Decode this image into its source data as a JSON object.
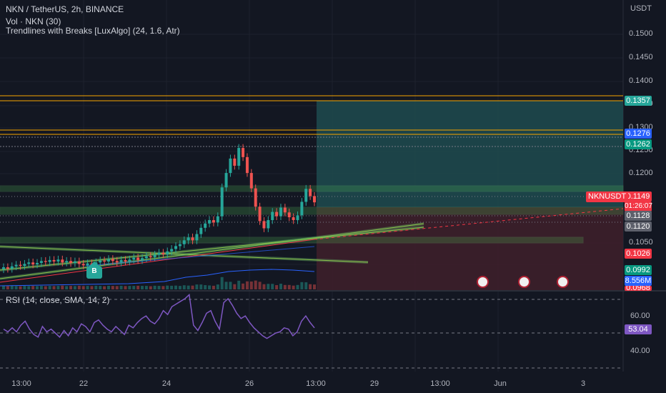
{
  "header": {
    "symbol_line": "NKN / TetherUS, 2h, BINANCE",
    "volume_line": "Vol · NKN (30)",
    "indicator_line": "Trendlines with Breaks [LuxAlgo] (24, 1.6, Atr)",
    "rsi_line": "RSI (14, close, SMA, 14, 2)"
  },
  "price_axis": {
    "currency": "USDT",
    "ticks": [
      "0.1500",
      "0.1450",
      "0.1400",
      "0.1350",
      "0.1300",
      "0.1250",
      "0.1200",
      "0.1050",
      "0.1000",
      "0.0968"
    ]
  },
  "rsi_axis": {
    "ticks": [
      "60.00",
      "40.00"
    ]
  },
  "price_tags": [
    {
      "label": "0.1357",
      "color": "#26a69a"
    },
    {
      "label": "0.1276",
      "color": "#2962ff"
    },
    {
      "label": "0.1262",
      "color": "#089981"
    },
    {
      "label": "0.1149",
      "color": "#f23645"
    },
    {
      "label": "01:26:07",
      "color": "#f23645"
    },
    {
      "label": "0.1128",
      "color": "#5d606b"
    },
    {
      "label": "0.1120",
      "color": "#5d606b"
    },
    {
      "label": "0.1026",
      "color": "#f23645"
    },
    {
      "label": "0.0992",
      "color": "#089981"
    },
    {
      "label": "8.556M",
      "color": "#2962ff"
    },
    {
      "label": "53.04",
      "color": "#7e57c2"
    }
  ],
  "ticker_tag": "NKNUSDT",
  "time_axis": [
    "13:00",
    "22",
    "24",
    "26",
    "13:00",
    "29",
    "13:00",
    "Jun",
    "3"
  ],
  "markers": {
    "break_label": "B"
  },
  "icons": [
    "us-flag-icon",
    "us-flag-icon",
    "us-flag-icon"
  ],
  "colors": {
    "background": "#131722",
    "up": "#26a69a",
    "down": "#ef5350",
    "rsi_line": "#7e57c2",
    "target_zone": "#1f4b4f",
    "stop_zone": "#3d1f2a"
  },
  "chart_data": {
    "type": "candlestick",
    "title": "NKN / TetherUS, 2h, BINANCE",
    "ylim": [
      0.0968,
      0.1525
    ],
    "y_scale_ticks": [
      0.15,
      0.145,
      0.14,
      0.135,
      0.13,
      0.125,
      0.12,
      0.105,
      0.1
    ],
    "last_price": 0.1149,
    "position": {
      "entry": 0.1128,
      "target": 0.1357,
      "stop": 0.0968
    },
    "horizontal_levels": [
      0.1357,
      0.1276,
      0.1262,
      0.1128,
      0.112
    ],
    "candles": [
      {
        "o": 0.101,
        "c": 0.1014
      },
      {
        "o": 0.1014,
        "c": 0.1011
      },
      {
        "o": 0.1011,
        "c": 0.1016
      },
      {
        "o": 0.1016,
        "c": 0.1019
      },
      {
        "o": 0.1019,
        "c": 0.1017
      },
      {
        "o": 0.1017,
        "c": 0.1021
      },
      {
        "o": 0.1021,
        "c": 0.1024
      },
      {
        "o": 0.1024,
        "c": 0.102
      },
      {
        "o": 0.102,
        "c": 0.1023
      },
      {
        "o": 0.1023,
        "c": 0.1027
      },
      {
        "o": 0.1027,
        "c": 0.1025
      },
      {
        "o": 0.1025,
        "c": 0.1029
      },
      {
        "o": 0.1029,
        "c": 0.1026
      },
      {
        "o": 0.1026,
        "c": 0.103
      },
      {
        "o": 0.103,
        "c": 0.1024
      },
      {
        "o": 0.1024,
        "c": 0.1027
      },
      {
        "o": 0.1027,
        "c": 0.1023
      },
      {
        "o": 0.1023,
        "c": 0.1026
      },
      {
        "o": 0.1026,
        "c": 0.1021
      },
      {
        "o": 0.1021,
        "c": 0.1018
      },
      {
        "o": 0.1018,
        "c": 0.1022
      },
      {
        "o": 0.1022,
        "c": 0.1019
      },
      {
        "o": 0.1019,
        "c": 0.1024
      },
      {
        "o": 0.1024,
        "c": 0.1028
      },
      {
        "o": 0.1028,
        "c": 0.1026
      },
      {
        "o": 0.1026,
        "c": 0.1031
      },
      {
        "o": 0.1031,
        "c": 0.1027
      },
      {
        "o": 0.1027,
        "c": 0.1024
      },
      {
        "o": 0.1024,
        "c": 0.1029
      },
      {
        "o": 0.1029,
        "c": 0.1026
      },
      {
        "o": 0.1026,
        "c": 0.103
      },
      {
        "o": 0.103,
        "c": 0.1034
      },
      {
        "o": 0.1034,
        "c": 0.1029
      },
      {
        "o": 0.1029,
        "c": 0.1033
      },
      {
        "o": 0.1033,
        "c": 0.1037
      },
      {
        "o": 0.1037,
        "c": 0.1035
      },
      {
        "o": 0.1035,
        "c": 0.104
      },
      {
        "o": 0.104,
        "c": 0.1044
      },
      {
        "o": 0.1044,
        "c": 0.1041
      },
      {
        "o": 0.1041,
        "c": 0.1047
      },
      {
        "o": 0.1047,
        "c": 0.1052
      },
      {
        "o": 0.1052,
        "c": 0.1058
      },
      {
        "o": 0.1058,
        "c": 0.1062
      },
      {
        "o": 0.1062,
        "c": 0.107
      },
      {
        "o": 0.107,
        "c": 0.1076
      },
      {
        "o": 0.1076,
        "c": 0.107
      },
      {
        "o": 0.107,
        "c": 0.1083
      },
      {
        "o": 0.1083,
        "c": 0.1096
      },
      {
        "o": 0.1096,
        "c": 0.1105
      },
      {
        "o": 0.1105,
        "c": 0.1112
      },
      {
        "o": 0.1112,
        "c": 0.1107
      },
      {
        "o": 0.1107,
        "c": 0.112
      },
      {
        "o": 0.112,
        "c": 0.118
      },
      {
        "o": 0.118,
        "c": 0.121
      },
      {
        "o": 0.121,
        "c": 0.124
      },
      {
        "o": 0.124,
        "c": 0.1225
      },
      {
        "o": 0.1225,
        "c": 0.1262
      },
      {
        "o": 0.1262,
        "c": 0.1243
      },
      {
        "o": 0.1243,
        "c": 0.121
      },
      {
        "o": 0.121,
        "c": 0.1178
      },
      {
        "o": 0.1178,
        "c": 0.114
      },
      {
        "o": 0.114,
        "c": 0.111
      },
      {
        "o": 0.111,
        "c": 0.1095
      },
      {
        "o": 0.1095,
        "c": 0.1112
      },
      {
        "o": 0.1112,
        "c": 0.1129
      },
      {
        "o": 0.1129,
        "c": 0.112
      },
      {
        "o": 0.112,
        "c": 0.1138
      },
      {
        "o": 0.1138,
        "c": 0.1128
      },
      {
        "o": 0.1128,
        "c": 0.1118
      },
      {
        "o": 0.1118,
        "c": 0.1112
      },
      {
        "o": 0.1112,
        "c": 0.1122
      },
      {
        "o": 0.1122,
        "c": 0.115
      },
      {
        "o": 0.115,
        "c": 0.1177
      },
      {
        "o": 0.1177,
        "c": 0.1162
      },
      {
        "o": 0.1162,
        "c": 0.1149
      }
    ],
    "volume_last": "8.556M",
    "rsi": {
      "last": 53.04,
      "values": [
        52,
        50,
        53,
        50,
        55,
        58,
        52,
        48,
        46,
        54,
        50,
        52,
        49,
        46,
        51,
        47,
        53,
        50,
        56,
        54,
        50,
        57,
        59,
        55,
        52,
        50,
        54,
        51,
        48,
        55,
        53,
        57,
        60,
        62,
        58,
        56,
        60,
        66,
        63,
        69,
        71,
        73,
        75,
        78,
        55,
        51,
        57,
        64,
        66,
        58,
        52,
        72,
        75,
        70,
        64,
        60,
        62,
        57,
        53,
        50,
        47,
        45,
        47,
        49,
        50,
        53,
        52,
        47,
        50,
        58,
        62,
        57,
        53
      ]
    }
  }
}
